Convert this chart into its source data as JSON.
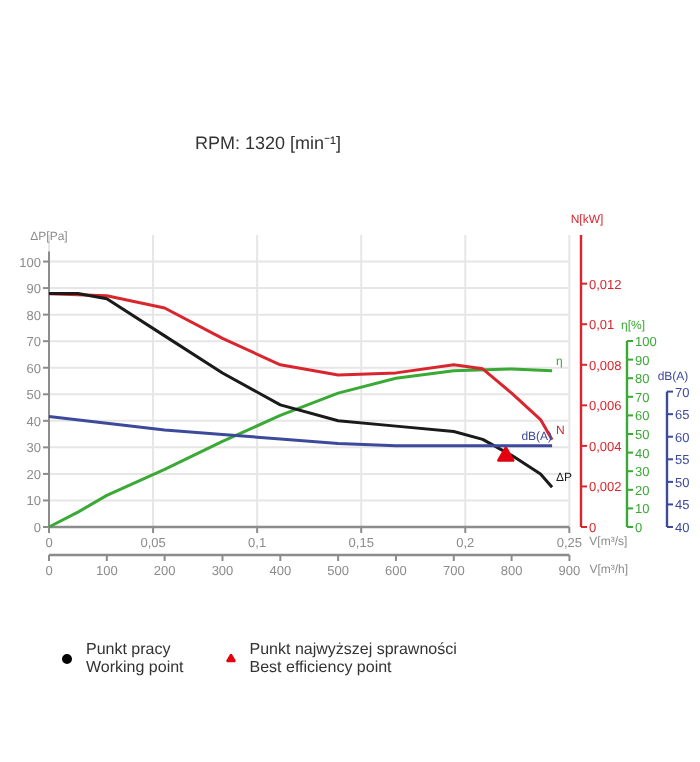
{
  "chart_data": [
    {
      "type": "line",
      "title": "RPM: 1320 [min⁻¹]",
      "ylabel": "ΔP[Pa]",
      "y2label": "N[kW]",
      "y3label": "η[%]",
      "xlabel": "V[m³/h]",
      "x2label": "V[m³/s]",
      "xlim": [
        0,
        920
      ],
      "xticks": [
        0,
        100,
        200,
        300,
        400,
        500,
        600,
        700,
        800,
        900
      ],
      "x2lim": [
        0,
        0.2556
      ],
      "x2ticks": [
        0,
        {
          "value": 0.05,
          "label": "0,05"
        },
        {
          "value": 0.1,
          "label": "0,1"
        },
        {
          "value": 0.15,
          "label": "0,15"
        },
        {
          "value": 0.2,
          "label": "0,2"
        },
        {
          "value": 0.25,
          "label": "0,25"
        }
      ],
      "ylim": [
        0,
        110
      ],
      "yticks": [
        0,
        10,
        20,
        30,
        40,
        50,
        60,
        70,
        80,
        90,
        100
      ],
      "y2lim": [
        0,
        0.0144
      ],
      "y2ticks": [
        0,
        {
          "value": 0.002,
          "label": "0,002"
        },
        {
          "value": 0.004,
          "label": "0,004"
        },
        {
          "value": 0.006,
          "label": "0,006"
        },
        {
          "value": 0.008,
          "label": "0,008"
        },
        {
          "value": 0.01,
          "label": "0,01"
        },
        {
          "value": 0.012,
          "label": "0,012"
        }
      ],
      "y3lim": [
        0,
        157
      ],
      "y3ticks": [
        0,
        10,
        20,
        30,
        40,
        50,
        60,
        70,
        80,
        90,
        100
      ],
      "grid": true,
      "legend": "bottom",
      "line_style": "solid",
      "series": [
        {
          "name": "η",
          "color": "#3aa935",
          "axis": "y3",
          "x": [
            0,
            50,
            100,
            200,
            300,
            400,
            500,
            600,
            700,
            800,
            870
          ],
          "values": [
            0,
            8,
            17,
            31,
            46,
            60,
            72,
            80,
            84,
            85,
            84
          ]
        },
        {
          "name": "N",
          "color": "#d9262e",
          "axis": "y2",
          "x": [
            0,
            100,
            200,
            300,
            400,
            500,
            600,
            700,
            750,
            800,
            850,
            870
          ],
          "values": [
            0.0115,
            0.0114,
            0.0108,
            0.0093,
            0.008,
            0.0075,
            0.0076,
            0.008,
            0.0078,
            0.0066,
            0.0053,
            0.0043
          ]
        },
        {
          "name": "ΔP",
          "color": "#1a1a1a",
          "x": [
            0,
            50,
            100,
            200,
            300,
            400,
            500,
            600,
            700,
            750,
            800,
            850,
            870
          ],
          "values": [
            88,
            88,
            86,
            72,
            58,
            46,
            40,
            38,
            36,
            33,
            27,
            20,
            15
          ]
        },
        {
          "name": "Punkt pracy\nWorking point",
          "type": "scatter",
          "marker": "circle",
          "color": "#000000"
        },
        {
          "name": "Punkt najwyższej sprawności\nBest efficiency point",
          "type": "scatter",
          "marker": "triangle",
          "color": "#e3000f",
          "x": [
            790
          ],
          "values": [
            26.7
          ]
        }
      ]
    },
    {
      "type": "line",
      "ylabel": "dB(A)",
      "xlim": [
        0,
        920
      ],
      "ylim": [
        40,
        104.7
      ],
      "yticks": [
        40,
        45,
        50,
        55,
        60,
        65,
        70
      ],
      "tick_labels": "y",
      "series": [
        {
          "name": "dB(A)",
          "color": "#3d4a9b",
          "x": [
            0,
            100,
            200,
            300,
            400,
            500,
            600,
            700,
            800,
            870
          ],
          "values": [
            64.5,
            63,
            61.5,
            60.5,
            59.5,
            58.5,
            58,
            58,
            58,
            58
          ]
        }
      ]
    }
  ]
}
